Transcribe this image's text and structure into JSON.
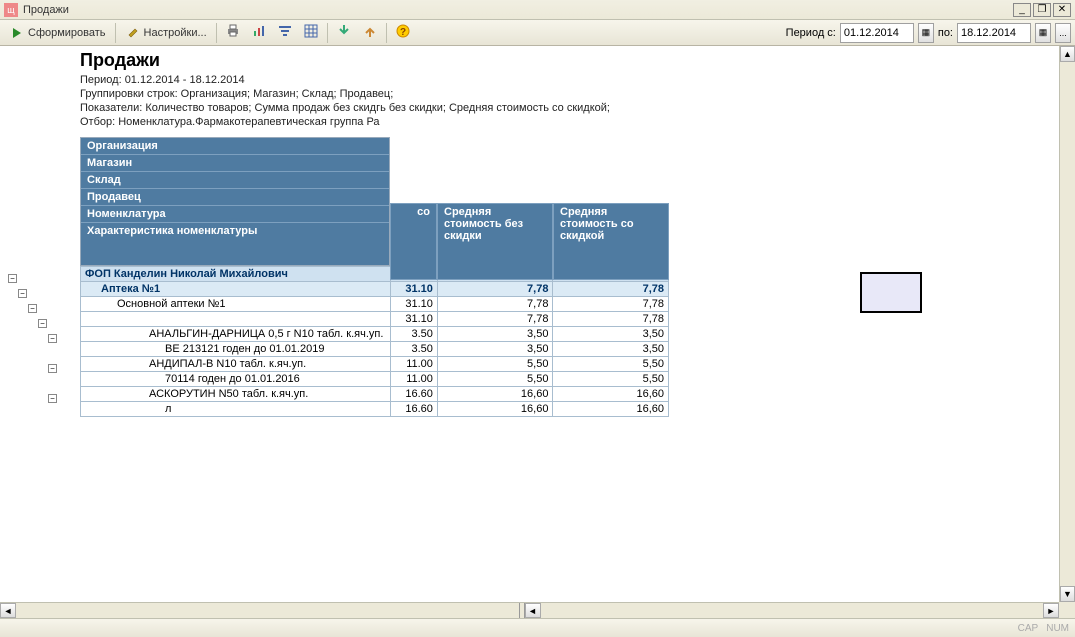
{
  "window": {
    "title": "Продажи",
    "minimize": "_",
    "maximize": "❐",
    "close": "✕"
  },
  "toolbar": {
    "form_label": "Сформировать",
    "settings_label": "Настройки...",
    "period_label": "Период с:",
    "period_to_label": "по:",
    "date_from": "01.12.2014",
    "date_to": "18.12.2014"
  },
  "report": {
    "title": "Продажи",
    "sub1": "Период: 01.12.2014 - 18.12.2014",
    "sub2": "Группировки строк: Организация; Магазин; Склад; Продавец;",
    "sub3_a": "Показатели: Количество товаров; Сумма продаж без скид",
    "sub3_b": "гь без скидки; Средняя стоимость со скидкой;",
    "sub4": "Отбор: Номенклатура.Фармакотерапевтическая группа Ра"
  },
  "header_labels": {
    "h1": "Организация",
    "h2": "Магазин",
    "h3": "Склад",
    "h4": "Продавец",
    "h5": "Номенклатура",
    "h6": "Характеристика номенклатуры"
  },
  "col_headers": {
    "c1_partial": "со",
    "c2": "Средняя стоимость без скидки",
    "c3": "Средняя стоимость со скидкой"
  },
  "rows": [
    {
      "lvl": 0,
      "name": "ФОП Канделин Николай Михайлович",
      "v1": "31.10",
      "v2": "7,78",
      "v3": "7,78"
    },
    {
      "lvl": 1,
      "name": "Аптека №1",
      "v1": "31.10",
      "v2": "7,78",
      "v3": "7,78"
    },
    {
      "lvl": 2,
      "name": "Основной аптеки №1",
      "v1": "31.10",
      "v2": "7,78",
      "v3": "7,78"
    },
    {
      "lvl": 3,
      "name": "",
      "v1": "31.10",
      "v2": "7,78",
      "v3": "7,78"
    },
    {
      "lvl": 4,
      "name": "АНАЛЬГИН-ДАРНИЦА 0,5 г N10 табл. к.яч.уп.",
      "v1": "3.50",
      "v2": "3,50",
      "v3": "3,50"
    },
    {
      "lvl": 5,
      "name": "ВЕ 213121 годен до 01.01.2019",
      "v1": "3.50",
      "v2": "3,50",
      "v3": "3,50"
    },
    {
      "lvl": 4,
      "name": "АНДИПАЛ-В N10 табл. к.яч.уп.",
      "v1": "11.00",
      "v2": "5,50",
      "v3": "5,50"
    },
    {
      "lvl": 5,
      "name": "70114 годен до 01.01.2016",
      "v1": "11.00",
      "v2": "5,50",
      "v3": "5,50"
    },
    {
      "lvl": 4,
      "name": "АСКОРУТИН N50 табл. к.яч.уп.",
      "v1": "16.60",
      "v2": "16,60",
      "v3": "16,60"
    },
    {
      "lvl": 5,
      "name": "л",
      "v1": "16.60",
      "v2": "16,60",
      "v3": "16,60"
    }
  ],
  "statusbar": {
    "cap": "CAP",
    "num": "NUM"
  }
}
